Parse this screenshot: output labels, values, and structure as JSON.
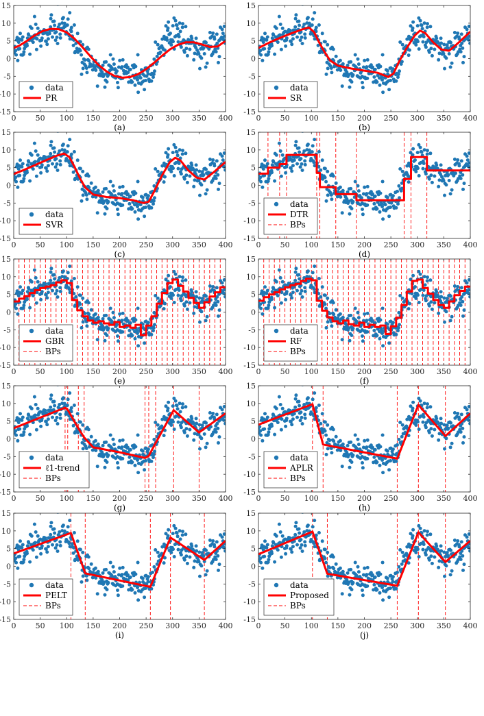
{
  "colors": {
    "dots": "#1f77b4",
    "fit": "#ff0000",
    "bps": "#ff0000",
    "axis": "#262626",
    "frame": "#262626"
  },
  "legend_labels": {
    "data": "data",
    "bps": "BPs"
  },
  "chart_data": [
    {
      "type": "scatter",
      "caption": "(a)",
      "fit_label": "PR",
      "show_bps": false,
      "xlim": [
        0,
        400
      ],
      "ylim": [
        -15,
        15
      ],
      "xticks": [
        "0",
        "50",
        "100",
        "150",
        "200",
        "250",
        "300",
        "350",
        "400"
      ],
      "yticks": [
        "15",
        "10",
        "5",
        "0",
        "-5",
        "-10",
        "-15"
      ],
      "fit_x": [
        0,
        10,
        25,
        40,
        55,
        70,
        85,
        100,
        115,
        130,
        145,
        160,
        175,
        190,
        205,
        220,
        235,
        250,
        265,
        280,
        295,
        310,
        325,
        340,
        355,
        370,
        385,
        400
      ],
      "fit_y": [
        3,
        3.6,
        5,
        6.6,
        7.8,
        8.4,
        8.3,
        7.4,
        5.6,
        3.2,
        0.6,
        -1.8,
        -3.6,
        -4.9,
        -5.4,
        -5.2,
        -4.4,
        -3,
        -1.2,
        0.8,
        2.6,
        3.9,
        4.6,
        4.6,
        4,
        3.3,
        3.4,
        5
      ]
    },
    {
      "type": "scatter",
      "caption": "(b)",
      "fit_label": "SR",
      "show_bps": false,
      "xlim": [
        0,
        400
      ],
      "ylim": [
        -15,
        15
      ],
      "xticks": [
        "0",
        "50",
        "100",
        "150",
        "200",
        "250",
        "300",
        "350",
        "400"
      ],
      "yticks": [
        "15",
        "10",
        "5",
        "0",
        "-5",
        "-10",
        "-15"
      ],
      "fit_x": [
        0,
        20,
        40,
        60,
        80,
        95,
        105,
        115,
        125,
        135,
        150,
        175,
        200,
        225,
        245,
        255,
        265,
        280,
        295,
        305,
        315,
        330,
        345,
        360,
        380,
        400
      ],
      "fit_y": [
        3,
        4.5,
        5.8,
        7,
        8.1,
        8.8,
        7.5,
        4.5,
        1.8,
        -0.5,
        -2,
        -2.8,
        -3.4,
        -4,
        -5.2,
        -4.2,
        -1,
        3,
        6.5,
        7.9,
        7.2,
        4.6,
        2.6,
        2.2,
        4.8,
        7.6
      ]
    },
    {
      "type": "scatter",
      "caption": "(c)",
      "fit_label": "SVR",
      "show_bps": false,
      "xlim": [
        0,
        400
      ],
      "ylim": [
        -15,
        15
      ],
      "xticks": [
        "0",
        "50",
        "100",
        "150",
        "200",
        "250",
        "300",
        "350",
        "400"
      ],
      "yticks": [
        "15",
        "10",
        "5",
        "0",
        "-5",
        "-10",
        "-15"
      ],
      "fit_x": [
        0,
        20,
        40,
        60,
        80,
        95,
        105,
        115,
        125,
        135,
        150,
        175,
        200,
        225,
        245,
        255,
        265,
        280,
        295,
        305,
        315,
        330,
        345,
        360,
        380,
        400
      ],
      "fit_y": [
        3.2,
        4.4,
        5.7,
        7,
        8.3,
        9,
        8,
        5.2,
        2,
        -0.6,
        -2.6,
        -3.3,
        -3.6,
        -4.2,
        -5,
        -4.6,
        -1.8,
        2.8,
        6.6,
        7.8,
        7,
        4.2,
        2.2,
        1.6,
        4,
        6.6
      ]
    },
    {
      "type": "scatter",
      "caption": "(d)",
      "fit_label": "DTR",
      "show_bps": true,
      "xlim": [
        0,
        400
      ],
      "ylim": [
        -15,
        15
      ],
      "xticks": [
        "0",
        "50",
        "100",
        "150",
        "200",
        "250",
        "300",
        "350",
        "400"
      ],
      "yticks": [
        "15",
        "10",
        "5",
        "0",
        "-5",
        "-10",
        "-15"
      ],
      "fit_x": [
        0,
        18,
        18,
        40,
        40,
        53,
        53,
        110,
        110,
        116,
        116,
        146,
        146,
        185,
        185,
        275,
        275,
        288,
        288,
        318,
        318,
        400
      ],
      "fit_y": [
        3.3,
        3.3,
        5,
        5,
        6,
        6,
        8.6,
        8.6,
        3.5,
        3.5,
        -0.5,
        -0.5,
        -2.5,
        -2.5,
        -4.2,
        -4.2,
        1.8,
        1.8,
        8,
        8,
        4.2,
        4.2
      ],
      "bps": [
        18,
        40,
        53,
        110,
        116,
        146,
        185,
        275,
        288,
        318
      ]
    },
    {
      "type": "scatter",
      "caption": "(e)",
      "fit_label": "GBR",
      "show_bps": true,
      "xlim": [
        0,
        400
      ],
      "ylim": [
        -15,
        15
      ],
      "xticks": [
        "0",
        "50",
        "100",
        "150",
        "200",
        "250",
        "300",
        "350",
        "400"
      ],
      "yticks": [
        "15",
        "10",
        "5",
        "0",
        "-5",
        "-10",
        "-15"
      ],
      "fit_x": [
        0,
        10,
        10,
        20,
        20,
        30,
        30,
        40,
        40,
        50,
        50,
        60,
        60,
        70,
        70,
        80,
        80,
        90,
        90,
        100,
        100,
        110,
        110,
        120,
        120,
        130,
        130,
        140,
        140,
        150,
        150,
        160,
        160,
        170,
        170,
        180,
        180,
        190,
        190,
        200,
        200,
        210,
        210,
        220,
        220,
        230,
        230,
        240,
        240,
        250,
        250,
        260,
        260,
        270,
        270,
        280,
        280,
        290,
        290,
        300,
        300,
        310,
        310,
        320,
        320,
        330,
        330,
        340,
        340,
        350,
        350,
        360,
        360,
        370,
        370,
        380,
        380,
        390,
        390,
        400
      ],
      "fit_y": [
        3,
        3,
        3.8,
        3.8,
        4.5,
        4.5,
        5.4,
        5.4,
        6.2,
        6.2,
        6.8,
        6.8,
        7.2,
        7.2,
        7.6,
        7.6,
        8.4,
        8.4,
        9,
        9,
        8.2,
        8.2,
        3.4,
        3.4,
        0.5,
        0.5,
        -1.2,
        -1.2,
        -2.4,
        -2.4,
        -3,
        -3,
        -2.6,
        -2.6,
        -3.2,
        -3.2,
        -3.6,
        -3.6,
        -2.8,
        -2.8,
        -4.2,
        -4.2,
        -3.8,
        -3.8,
        -4.4,
        -4.4,
        -3.6,
        -3.6,
        -6.5,
        -6.5,
        -3.8,
        -3.8,
        -1.2,
        -1.2,
        2.4,
        2.4,
        5.4,
        5.4,
        8.2,
        8.2,
        9.2,
        9.2,
        7.4,
        7.4,
        5.8,
        5.8,
        4,
        4,
        2.6,
        2.6,
        1.2,
        1.2,
        2.8,
        2.8,
        4.4,
        4.4,
        5.6,
        5.6,
        7,
        7
      ],
      "bps": [
        10,
        20,
        30,
        40,
        50,
        60,
        70,
        80,
        90,
        100,
        110,
        120,
        130,
        140,
        150,
        160,
        170,
        180,
        190,
        200,
        210,
        220,
        230,
        240,
        250,
        260,
        270,
        280,
        290,
        300,
        310,
        320,
        330,
        340,
        350,
        360,
        370,
        380,
        390
      ]
    },
    {
      "type": "scatter",
      "caption": "(f)",
      "fit_label": "RF",
      "show_bps": true,
      "xlim": [
        0,
        400
      ],
      "ylim": [
        -15,
        15
      ],
      "xticks": [
        "0",
        "50",
        "100",
        "150",
        "200",
        "250",
        "300",
        "350",
        "400"
      ],
      "yticks": [
        "15",
        "10",
        "5",
        "0",
        "-5",
        "-10",
        "-15"
      ],
      "fit_x": [
        0,
        10,
        10,
        20,
        20,
        30,
        30,
        40,
        40,
        50,
        50,
        60,
        60,
        70,
        70,
        80,
        80,
        90,
        90,
        100,
        100,
        110,
        110,
        120,
        120,
        130,
        130,
        140,
        140,
        150,
        150,
        160,
        160,
        170,
        170,
        180,
        180,
        190,
        190,
        200,
        200,
        210,
        210,
        220,
        220,
        230,
        230,
        240,
        240,
        250,
        250,
        260,
        260,
        270,
        270,
        280,
        280,
        290,
        290,
        300,
        300,
        310,
        310,
        320,
        320,
        330,
        330,
        340,
        340,
        350,
        350,
        360,
        360,
        370,
        370,
        380,
        380,
        390,
        390,
        400
      ],
      "fit_y": [
        3.2,
        3.2,
        4.2,
        4.2,
        5,
        5,
        5.6,
        5.6,
        6.4,
        6.4,
        7,
        7,
        7.6,
        7.6,
        8,
        8,
        8.8,
        8.8,
        9.4,
        9.4,
        9,
        9,
        3.2,
        3.2,
        0.4,
        0.4,
        -1.5,
        -1.5,
        -2.6,
        -2.6,
        -3.2,
        -3.2,
        -2.4,
        -2.4,
        -3.4,
        -3.4,
        -3.8,
        -3.8,
        -3,
        -3,
        -4.2,
        -4.2,
        -3.6,
        -3.6,
        -4.2,
        -4.2,
        -3.8,
        -3.8,
        -6.2,
        -6.2,
        -4,
        -4,
        -1.6,
        -1.6,
        2,
        2,
        5.8,
        5.8,
        8.8,
        8.8,
        9.2,
        9.2,
        6.8,
        6.8,
        5.2,
        5.2,
        3.4,
        3.4,
        2,
        2,
        1.2,
        1.2,
        3,
        3,
        4.8,
        4.8,
        6,
        6,
        7.2,
        7.2
      ],
      "bps": [
        10,
        20,
        30,
        40,
        50,
        60,
        70,
        80,
        90,
        100,
        110,
        120,
        130,
        140,
        150,
        160,
        170,
        180,
        190,
        200,
        210,
        220,
        230,
        240,
        250,
        260,
        270,
        280,
        290,
        300,
        310,
        320,
        330,
        340,
        350,
        360,
        370,
        380,
        390
      ]
    },
    {
      "type": "scatter",
      "caption": "(g)",
      "fit_label": "ℓ1-trend",
      "show_bps": true,
      "xlim": [
        0,
        400
      ],
      "ylim": [
        -15,
        15
      ],
      "xticks": [
        "0",
        "50",
        "100",
        "150",
        "200",
        "250",
        "300",
        "350",
        "400"
      ],
      "yticks": [
        "15",
        "10",
        "5",
        "0",
        "-5",
        "-10",
        "-15"
      ],
      "fit_x": [
        0,
        97,
        102,
        122,
        133,
        150,
        200,
        248,
        255,
        268,
        302,
        350,
        400
      ],
      "fit_y": [
        3,
        8.8,
        8.2,
        3,
        0.4,
        -2.4,
        -3.8,
        -5.4,
        -4.8,
        -1.2,
        8.1,
        1.8,
        7.2
      ],
      "bps": [
        97,
        102,
        122,
        133,
        248,
        255,
        268,
        302,
        350
      ]
    },
    {
      "type": "scatter",
      "caption": "(h)",
      "fit_label": "APLR",
      "show_bps": true,
      "xlim": [
        0,
        400
      ],
      "ylim": [
        -15,
        15
      ],
      "xticks": [
        "0",
        "50",
        "100",
        "150",
        "200",
        "250",
        "300",
        "350",
        "400"
      ],
      "yticks": [
        "15",
        "10",
        "5",
        "0",
        "-5",
        "-10",
        "-15"
      ],
      "fit_x": [
        0,
        102,
        122,
        262,
        302,
        353,
        400
      ],
      "fit_y": [
        4,
        9.8,
        -1.6,
        -5.6,
        9.6,
        0.8,
        7.2
      ],
      "bps": [
        102,
        122,
        262,
        302,
        353
      ]
    },
    {
      "type": "scatter",
      "caption": "(i)",
      "fit_label": "PELT",
      "show_bps": true,
      "xlim": [
        0,
        400
      ],
      "ylim": [
        -15,
        15
      ],
      "xticks": [
        "0",
        "50",
        "100",
        "150",
        "200",
        "250",
        "300",
        "350",
        "400"
      ],
      "yticks": [
        "15",
        "10",
        "5",
        "0",
        "-5",
        "-10",
        "-15"
      ],
      "fit_x": [
        0,
        108,
        135,
        258,
        296,
        360,
        400
      ],
      "fit_y": [
        3.6,
        9.4,
        -2,
        -5.8,
        8.1,
        1.8,
        7.2
      ],
      "bps": [
        108,
        135,
        258,
        296,
        360
      ]
    },
    {
      "type": "scatter",
      "caption": "(j)",
      "fit_label": "Proposed",
      "show_bps": true,
      "xlim": [
        0,
        400
      ],
      "ylim": [
        -15,
        15
      ],
      "xticks": [
        "0",
        "50",
        "100",
        "150",
        "200",
        "250",
        "300",
        "350",
        "400"
      ],
      "yticks": [
        "15",
        "10",
        "5",
        "0",
        "-5",
        "-10",
        "-15"
      ],
      "fit_x": [
        0,
        102,
        130,
        262,
        302,
        353,
        400
      ],
      "fit_y": [
        3.4,
        9.8,
        -2.1,
        -5.5,
        9.6,
        1.2,
        7.2
      ],
      "bps": [
        102,
        130,
        262,
        302,
        353
      ]
    }
  ]
}
